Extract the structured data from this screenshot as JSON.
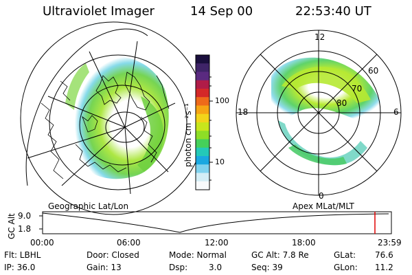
{
  "header": {
    "instrument": "Ultraviolet Imager",
    "date": "14 Sep 00",
    "time": "22:53:40 UT"
  },
  "colorbar": {
    "unit_label": "photon cm⁻²s⁻¹",
    "ticks": [
      "100",
      "10"
    ],
    "colors": [
      "#1a0f3d",
      "#3f2468",
      "#5a2a80",
      "#b01c48",
      "#d42828",
      "#ee6a1a",
      "#f6a514",
      "#f2d41a",
      "#c8e61c",
      "#8ede26",
      "#45d05a",
      "#24c9b8",
      "#1aa8e0",
      "#7fd2ee",
      "#d4eef6",
      "#f8fafc"
    ]
  },
  "left_panel": {
    "caption": "Geographic Lat/Lon"
  },
  "right_panel": {
    "caption": "Apex MLat/MLT",
    "mlt_labels": {
      "top": "12",
      "left": "18",
      "right": "6",
      "bottom": "0"
    },
    "lat_labels": [
      "60",
      "70",
      "80"
    ]
  },
  "timeline": {
    "ylabel": "GC Alt",
    "yticks": [
      "9.0",
      "1.8"
    ],
    "xticks": [
      "00:00",
      "06:00",
      "12:00",
      "18:00",
      "23:59"
    ],
    "marker_color": "#e00000"
  },
  "footer": {
    "filter": "Flt: LBHL",
    "ip": "IP: 36.0",
    "door": "Door: Closed",
    "gain": "Gain: 13",
    "mode": "Mode: Normal",
    "dsp_label": "Dsp:",
    "dsp_value": "3.0",
    "gcalt": "GC Alt: 7.8 Re",
    "seq": "Seq: 39",
    "glat_label": "GLat:",
    "glat_value": "76.6",
    "glon_label": "GLon:",
    "glon_value": "11.2"
  }
}
